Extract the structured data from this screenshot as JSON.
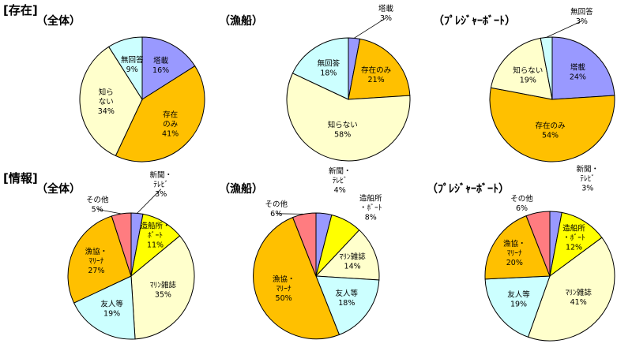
{
  "sections": {
    "existence": {
      "label": "[存在]"
    },
    "information": {
      "label": "[情報]"
    }
  },
  "colors": {
    "塔載": "#9999ff",
    "存在のみ": "#ffc000",
    "知らない": "#ffffcc",
    "無回答": "#ccffff",
    "新聞・テレビ": "#9999ff",
    "造船所・ボート": "#ffff00",
    "マリン雑誌": "#ffffcc",
    "友人等": "#ccffff",
    "漁協・マリーナ": "#ffc000",
    "その他": "#ff7c80"
  },
  "chart_data": [
    {
      "type": "pie",
      "section": "existence",
      "title": "（全体）",
      "slices": [
        {
          "name": "塔載",
          "value": 16,
          "label": [
            "塔載",
            "16%"
          ]
        },
        {
          "name": "存在のみ",
          "value": 41,
          "label": [
            "存在",
            "のみ",
            "41%"
          ]
        },
        {
          "name": "知らない",
          "value": 34,
          "label": [
            "知ら",
            "ない",
            "34%"
          ]
        },
        {
          "name": "無回答",
          "value": 9,
          "label": [
            "無回答",
            "9%"
          ]
        }
      ]
    },
    {
      "type": "pie",
      "section": "existence",
      "title": "（漁船）",
      "slices": [
        {
          "name": "塔載",
          "value": 3,
          "label": [
            "塔載",
            "3%"
          ]
        },
        {
          "name": "存在のみ",
          "value": 21,
          "label": [
            "存在のみ",
            "21%"
          ]
        },
        {
          "name": "知らない",
          "value": 58,
          "label": [
            "知らない",
            "58%"
          ]
        },
        {
          "name": "無回答",
          "value": 18,
          "label": [
            "無回答",
            "18%"
          ]
        }
      ]
    },
    {
      "type": "pie",
      "section": "existence",
      "title": "（ﾌﾟﾚｼﾞｬｰﾎﾞｰﾄ）",
      "slices": [
        {
          "name": "塔載",
          "value": 24,
          "label": [
            "塔載",
            "24%"
          ]
        },
        {
          "name": "存在のみ",
          "value": 54,
          "label": [
            "存在のみ",
            "54%"
          ]
        },
        {
          "name": "知らない",
          "value": 19,
          "label": [
            "知らない",
            "19%"
          ]
        },
        {
          "name": "無回答",
          "value": 3,
          "label": [
            "無回答",
            "3%"
          ]
        }
      ]
    },
    {
      "type": "pie",
      "section": "information",
      "title": "（全体）",
      "slices": [
        {
          "name": "新聞・テレビ",
          "value": 3,
          "label": [
            "新聞・",
            "ﾃﾚﾋﾞ",
            "3%"
          ]
        },
        {
          "name": "造船所・ボート",
          "value": 11,
          "label": [
            "造船所・",
            "ﾎﾞｰﾄ",
            "11%"
          ]
        },
        {
          "name": "マリン雑誌",
          "value": 35,
          "label": [
            "ﾏﾘﾝ雑誌",
            "35%"
          ]
        },
        {
          "name": "友人等",
          "value": 19,
          "label": [
            "友人等",
            "19%"
          ]
        },
        {
          "name": "漁協・マリーナ",
          "value": 27,
          "label": [
            "漁協・",
            "ﾏﾘｰﾅ",
            "27%"
          ]
        },
        {
          "name": "その他",
          "value": 5,
          "label": [
            "その他",
            "5%"
          ]
        }
      ]
    },
    {
      "type": "pie",
      "section": "information",
      "title": "（漁船）",
      "slices": [
        {
          "name": "新聞・テレビ",
          "value": 4,
          "label": [
            "新聞・",
            "ﾃﾚﾋﾞ",
            "4%"
          ]
        },
        {
          "name": "造船所・ボート",
          "value": 8,
          "label": [
            "造船所",
            "・ﾎﾞｰﾄ",
            "8%"
          ]
        },
        {
          "name": "マリン雑誌",
          "value": 14,
          "label": [
            "ﾏﾘﾝ雑誌",
            "14%"
          ]
        },
        {
          "name": "友人等",
          "value": 18,
          "label": [
            "友人等",
            "18%"
          ]
        },
        {
          "name": "漁協・マリーナ",
          "value": 50,
          "label": [
            "漁協・",
            "ﾏﾘｰﾅ",
            "50%"
          ]
        },
        {
          "name": "その他",
          "value": 6,
          "label": [
            "その他",
            "6%"
          ]
        }
      ]
    },
    {
      "type": "pie",
      "section": "information",
      "title": "（ﾌﾟﾚｼﾞｬｰﾎﾞｰﾄ）",
      "slices": [
        {
          "name": "新聞・テレビ",
          "value": 3,
          "label": [
            "新聞・",
            "ﾃﾚﾋﾞ",
            "3%"
          ]
        },
        {
          "name": "造船所・ボート",
          "value": 12,
          "label": [
            "造船所",
            "・ﾎﾞｰﾄ",
            "12%"
          ]
        },
        {
          "name": "マリン雑誌",
          "value": 41,
          "label": [
            "ﾏﾘﾝ雑誌",
            "41%"
          ]
        },
        {
          "name": "友人等",
          "value": 19,
          "label": [
            "友人等",
            "19%"
          ]
        },
        {
          "name": "漁協・マリーナ",
          "value": 20,
          "label": [
            "漁協・",
            "ﾏﾘｰﾅ",
            "20%"
          ]
        },
        {
          "name": "その他",
          "value": 6,
          "label": [
            "その他",
            "6%"
          ]
        }
      ]
    }
  ]
}
